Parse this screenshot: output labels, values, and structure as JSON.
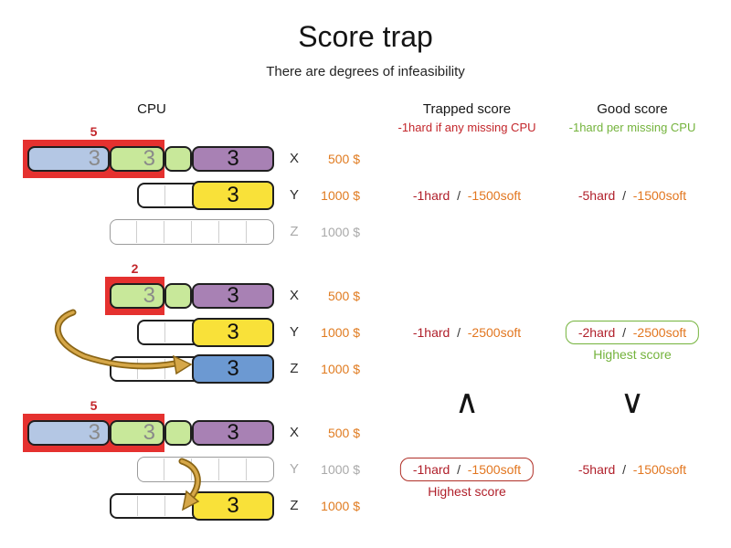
{
  "title": "Score trap",
  "subtitle": "There are degrees of infeasibility",
  "headers": {
    "cpu": "CPU",
    "trapped": {
      "title": "Trapped score",
      "subtitle": "-1hard if any missing CPU"
    },
    "good": {
      "title": "Good score",
      "subtitle": "-1hard per missing CPU"
    }
  },
  "comparators": {
    "trapped": "∧",
    "good": "∨"
  },
  "icons": {
    "scenario_2_arrow": "move-process-from-x-to-z-arrow",
    "scenario_3_arrow": "move-process-from-y-to-z-arrow"
  },
  "colors": {
    "overload_red": "#e5312f",
    "capacity_label_red": "#c3262b",
    "hard_red": "#b01f2a",
    "soft_orange": "#e2761f",
    "money_orange": "#e07b20",
    "good_green": "#74b33c",
    "box_red": "#b03028",
    "muted_grey": "#a9a9a9",
    "slash_dark": "#333333",
    "block_blue_light": "#b4c7e4",
    "block_green_light": "#c8e89a",
    "block_purple": "#a881b4",
    "block_yellow": "#f9e139",
    "block_blue": "#6c99d2",
    "arrow_gold": "#d6a748",
    "arrow_outline": "#8a6516"
  },
  "scenarios": [
    {
      "overload": {
        "label": "5",
        "units": 5
      },
      "arrow": null,
      "rows": [
        {
          "label": "X",
          "cost": "500 $",
          "active": true,
          "container": null,
          "blocks": [
            {
              "color": "block_blue_light",
              "units": 3,
              "label": "3",
              "text": "muted",
              "align": "right"
            },
            {
              "color": "block_green_light",
              "units": 2,
              "label": "3",
              "text": "muted",
              "align": "right"
            },
            {
              "color": "block_green_light",
              "units": 1,
              "label": "",
              "text": "muted",
              "align": "center"
            },
            {
              "color": "block_purple",
              "units": 3,
              "label": "3",
              "text": "dark",
              "align": "center"
            }
          ]
        },
        {
          "label": "Y",
          "cost": "1000 $",
          "active": true,
          "container": {
            "units": 5,
            "border": "dark"
          },
          "blocks": [
            {
              "color": "block_yellow",
              "units": 3,
              "label": "3",
              "text": "dark",
              "align": "center"
            }
          ]
        },
        {
          "label": "Z",
          "cost": "1000 $",
          "active": false,
          "container": {
            "units": 6,
            "border": "grey"
          },
          "blocks": []
        }
      ],
      "scores": {
        "trapped": {
          "hard": "-1hard",
          "slash": "/",
          "soft": "-1500soft",
          "boxed": null,
          "note": null
        },
        "good": {
          "hard": "-5hard",
          "slash": "/",
          "soft": "-1500soft",
          "boxed": null,
          "note": null
        }
      }
    },
    {
      "overload": {
        "label": "2",
        "units": 2
      },
      "arrow": "move-process-from-x-to-z-arrow",
      "rows": [
        {
          "label": "X",
          "cost": "500 $",
          "active": true,
          "container": null,
          "blocks": [
            {
              "color": "block_green_light",
              "units": 2,
              "label": "3",
              "text": "muted",
              "align": "right"
            },
            {
              "color": "block_green_light",
              "units": 1,
              "label": "",
              "text": "muted",
              "align": "center"
            },
            {
              "color": "block_purple",
              "units": 3,
              "label": "3",
              "text": "dark",
              "align": "center"
            }
          ]
        },
        {
          "label": "Y",
          "cost": "1000 $",
          "active": true,
          "container": {
            "units": 5,
            "border": "dark"
          },
          "blocks": [
            {
              "color": "block_yellow",
              "units": 3,
              "label": "3",
              "text": "dark",
              "align": "center"
            }
          ]
        },
        {
          "label": "Z",
          "cost": "1000 $",
          "active": true,
          "container": {
            "units": 6,
            "border": "dark"
          },
          "blocks": [
            {
              "color": "block_blue",
              "units": 3,
              "label": "3",
              "text": "dark",
              "align": "center"
            }
          ]
        }
      ],
      "scores": {
        "trapped": {
          "hard": "-1hard",
          "slash": "/",
          "soft": "-2500soft",
          "boxed": null,
          "note": null
        },
        "good": {
          "hard": "-2hard",
          "slash": "/",
          "soft": "-2500soft",
          "boxed": "green",
          "note": "Highest score"
        }
      }
    },
    {
      "overload": {
        "label": "5",
        "units": 5
      },
      "arrow": "move-process-from-y-to-z-arrow",
      "rows": [
        {
          "label": "X",
          "cost": "500 $",
          "active": true,
          "container": null,
          "blocks": [
            {
              "color": "block_blue_light",
              "units": 3,
              "label": "3",
              "text": "muted",
              "align": "right"
            },
            {
              "color": "block_green_light",
              "units": 2,
              "label": "3",
              "text": "muted",
              "align": "right"
            },
            {
              "color": "block_green_light",
              "units": 1,
              "label": "",
              "text": "muted",
              "align": "center"
            },
            {
              "color": "block_purple",
              "units": 3,
              "label": "3",
              "text": "dark",
              "align": "center"
            }
          ]
        },
        {
          "label": "Y",
          "cost": "1000 $",
          "active": false,
          "container": {
            "units": 5,
            "border": "grey"
          },
          "blocks": []
        },
        {
          "label": "Z",
          "cost": "1000 $",
          "active": true,
          "container": {
            "units": 6,
            "border": "dark"
          },
          "blocks": [
            {
              "color": "block_yellow",
              "units": 3,
              "label": "3",
              "text": "dark",
              "align": "center"
            }
          ]
        }
      ],
      "scores": {
        "trapped": {
          "hard": "-1hard",
          "slash": "/",
          "soft": "-1500soft",
          "boxed": "red",
          "note": "Highest score"
        },
        "good": {
          "hard": "-5hard",
          "slash": "/",
          "soft": "-1500soft",
          "boxed": null,
          "note": null
        }
      }
    }
  ]
}
